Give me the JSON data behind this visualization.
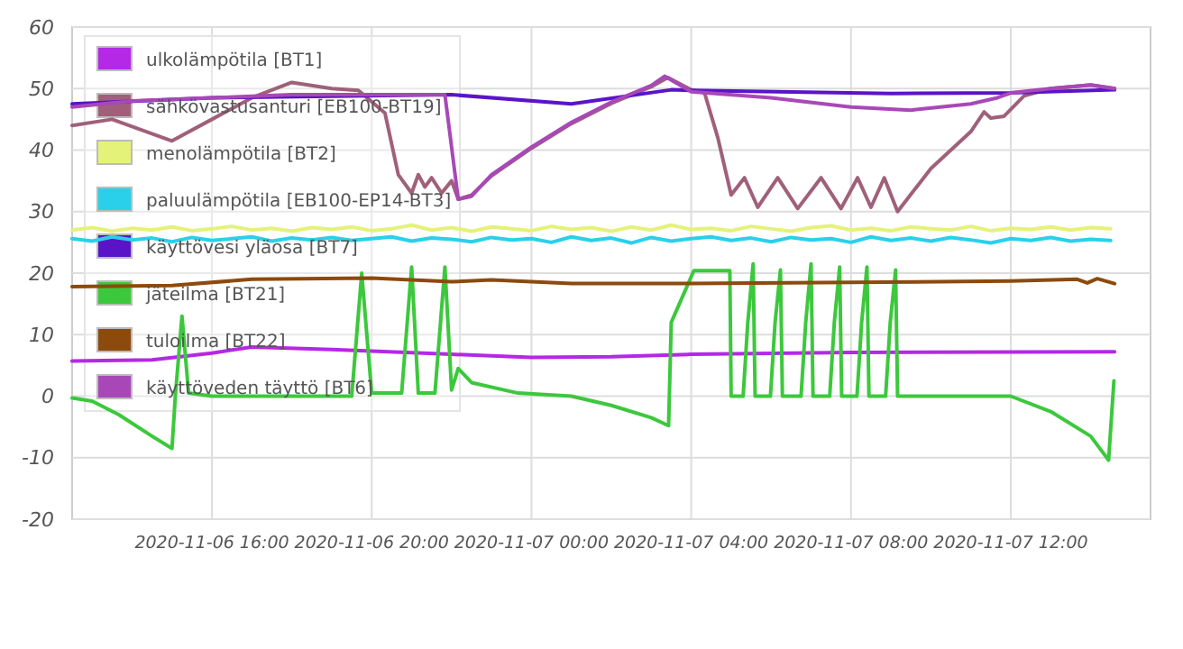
{
  "chart_data": {
    "type": "line",
    "grid": true,
    "legend": "top left",
    "marker": "none",
    "line_style": "solid",
    "xlim": [
      "2020-11-06T12:30",
      "2020-11-07T15:30"
    ],
    "xticks": [
      {
        "value": "2020-11-06T16:00",
        "label": "2020-11-06 16:00"
      },
      {
        "value": "2020-11-06T20:00",
        "label": "2020-11-06 20:00"
      },
      {
        "value": "2020-11-07T00:00",
        "label": "2020-11-07 00:00"
      },
      {
        "value": "2020-11-07T04:00",
        "label": "2020-11-07 04:00"
      },
      {
        "value": "2020-11-07T08:00",
        "label": "2020-11-07 08:00"
      },
      {
        "value": "2020-11-07T12:00",
        "label": "2020-11-07 12:00"
      }
    ],
    "ylim": [
      -20,
      60
    ],
    "yticks": [
      -20,
      -10,
      0,
      10,
      20,
      30,
      40,
      50,
      60
    ],
    "x": [
      "2020-11-06T12:30",
      "2020-11-06T13:00",
      "2020-11-06T13:30",
      "2020-11-06T14:00",
      "2020-11-06T14:30",
      "2020-11-06T15:00",
      "2020-11-06T15:30",
      "2020-11-06T16:00",
      "2020-11-06T16:30",
      "2020-11-06T17:00",
      "2020-11-06T17:30",
      "2020-11-06T18:00",
      "2020-11-06T18:30",
      "2020-11-06T19:00",
      "2020-11-06T19:30",
      "2020-11-06T20:00",
      "2020-11-06T20:30",
      "2020-11-06T21:00",
      "2020-11-06T21:30",
      "2020-11-06T22:00",
      "2020-11-06T22:30",
      "2020-11-06T23:00",
      "2020-11-06T23:30",
      "2020-11-07T00:00",
      "2020-11-07T00:30",
      "2020-11-07T01:00",
      "2020-11-07T01:30",
      "2020-11-07T02:00",
      "2020-11-07T02:30",
      "2020-11-07T03:00",
      "2020-11-07T03:30",
      "2020-11-07T04:00",
      "2020-11-07T04:30",
      "2020-11-07T05:00",
      "2020-11-07T05:30",
      "2020-11-07T06:00",
      "2020-11-07T06:30",
      "2020-11-07T07:00",
      "2020-11-07T07:30",
      "2020-11-07T08:00",
      "2020-11-07T08:30",
      "2020-11-07T09:00",
      "2020-11-07T09:30",
      "2020-11-07T10:00",
      "2020-11-07T10:30",
      "2020-11-07T11:00",
      "2020-11-07T11:30",
      "2020-11-07T12:00",
      "2020-11-07T12:30",
      "2020-11-07T13:00",
      "2020-11-07T13:30",
      "2020-11-07T14:00",
      "2020-11-07T14:30"
    ],
    "series": [
      {
        "name": "ulkolämpötila [BT1]",
        "color": "#b428e6",
        "x": [
          "2020-11-06T12:30",
          "2020-11-06T14:30",
          "2020-11-06T16:00",
          "2020-11-06T17:00",
          "2020-11-06T19:00",
          "2020-11-06T22:00",
          "2020-11-07T00:00",
          "2020-11-07T02:00",
          "2020-11-07T04:00",
          "2020-11-07T08:00",
          "2020-11-07T14:36"
        ],
        "values": [
          5.7,
          5.9,
          7,
          8,
          7.6,
          6.8,
          6.3,
          6.4,
          6.8,
          7.1,
          7.2
        ]
      },
      {
        "name": "sähkövastusanturi [EB100-BT19]",
        "color": "#a0607a",
        "x": [
          "2020-11-06T12:30",
          "2020-11-06T13:30",
          "2020-11-06T15:00",
          "2020-11-06T16:00",
          "2020-11-06T17:00",
          "2020-11-06T18:00",
          "2020-11-06T19:00",
          "2020-11-06T19:40",
          "2020-11-06T20:20",
          "2020-11-06T20:40",
          "2020-11-06T21:00",
          "2020-11-06T21:10",
          "2020-11-06T21:20",
          "2020-11-06T21:30",
          "2020-11-06T21:45",
          "2020-11-06T22:00",
          "2020-11-06T22:10",
          "2020-11-06T22:30",
          "2020-11-06T23:00",
          "2020-11-07T00:00",
          "2020-11-07T01:00",
          "2020-11-07T02:00",
          "2020-11-07T03:00",
          "2020-11-07T03:25",
          "2020-11-07T04:00",
          "2020-11-07T04:20",
          "2020-11-07T04:40",
          "2020-11-07T05:00",
          "2020-11-07T05:20",
          "2020-11-07T05:40",
          "2020-11-07T06:10",
          "2020-11-07T06:40",
          "2020-11-07T07:15",
          "2020-11-07T07:45",
          "2020-11-07T08:10",
          "2020-11-07T08:30",
          "2020-11-07T08:50",
          "2020-11-07T09:10",
          "2020-11-07T10:00",
          "2020-11-07T11:00",
          "2020-11-07T11:20",
          "2020-11-07T11:30",
          "2020-11-07T11:50",
          "2020-11-07T12:20",
          "2020-11-07T13:00",
          "2020-11-07T14:00",
          "2020-11-07T14:36"
        ],
        "values": [
          44,
          45,
          41.5,
          45,
          48.5,
          51,
          50,
          49.7,
          46,
          36,
          33,
          36,
          34,
          35.5,
          33,
          35,
          32,
          32.7,
          35.8,
          40.3,
          44.3,
          47.6,
          50.3,
          51.8,
          49.8,
          49.3,
          42,
          32.7,
          35.5,
          30.7,
          35.5,
          30.5,
          35.5,
          30.5,
          35.5,
          30.7,
          35.5,
          30,
          37,
          43,
          46.2,
          45.2,
          45.5,
          48.8,
          50,
          50.6,
          50
        ]
      },
      {
        "name": "menolämpötila [BT2]",
        "color": "#e4f27a",
        "values": [
          27,
          27.4,
          26.8,
          27.3,
          27,
          27.5,
          26.9,
          27.2,
          27.6,
          27,
          27.3,
          26.8,
          27.4,
          27.1,
          27.5,
          26.9,
          27.2,
          27.8,
          27,
          27.4,
          26.8,
          27.5,
          27.2,
          26.9,
          27.6,
          27.1,
          27.4,
          26.8,
          27.5,
          27,
          27.8,
          27.1,
          27.3,
          26.9,
          27.6,
          27.2,
          26.8,
          27.4,
          27.7,
          27,
          27.3,
          26.9,
          27.5,
          27.2,
          27,
          27.6,
          26.9,
          27.3,
          27.1,
          27.5,
          27,
          27.4,
          27.2
        ]
      },
      {
        "name": "paluulämpötila [EB100-EP14-BT3]",
        "color": "#2ad0ea",
        "values": [
          25.6,
          25.2,
          25.9,
          25.4,
          25.7,
          25.1,
          25.8,
          25.3,
          25.6,
          25.9,
          25.2,
          25.7,
          25.4,
          25.8,
          25.3,
          25.6,
          25.9,
          25.2,
          25.7,
          25.5,
          25.1,
          25.8,
          25.4,
          25.6,
          25,
          25.9,
          25.3,
          25.7,
          24.9,
          25.8,
          25.2,
          25.6,
          25.9,
          25.3,
          25.7,
          25.1,
          25.8,
          25.4,
          25.6,
          25,
          25.9,
          25.3,
          25.7,
          25.2,
          25.8,
          25.4,
          24.9,
          25.6,
          25.3,
          25.8,
          25.2,
          25.5,
          25.3
        ]
      },
      {
        "name": "käyttövesi yläosa [BT7]",
        "color": "#5a14c8",
        "x": [
          "2020-11-06T12:30",
          "2020-11-06T16:00",
          "2020-11-06T22:00",
          "2020-11-07T01:00",
          "2020-11-07T03:30",
          "2020-11-07T04:00",
          "2020-11-07T09:00",
          "2020-11-07T12:00",
          "2020-11-07T14:36"
        ],
        "values": [
          47.5,
          48.5,
          49,
          47.5,
          49.8,
          49.7,
          49.2,
          49.3,
          49.8
        ]
      },
      {
        "name": "jäteilma [BT21]",
        "color": "#3cc83c",
        "x": [
          "2020-11-06T12:30",
          "2020-11-06T13:00",
          "2020-11-06T13:40",
          "2020-11-06T14:30",
          "2020-11-06T15:00",
          "2020-11-06T15:05",
          "2020-11-06T15:15",
          "2020-11-06T15:25",
          "2020-11-06T16:00",
          "2020-11-06T19:30",
          "2020-11-06T19:45",
          "2020-11-06T20:00",
          "2020-11-06T20:45",
          "2020-11-06T21:00",
          "2020-11-06T21:10",
          "2020-11-06T21:35",
          "2020-11-06T21:50",
          "2020-11-06T22:00",
          "2020-11-06T22:10",
          "2020-11-06T22:30",
          "2020-11-06T23:40",
          "2020-11-07T01:00",
          "2020-11-07T02:00",
          "2020-11-07T03:00",
          "2020-11-07T03:26",
          "2020-11-07T03:30",
          "2020-11-07T04:04",
          "2020-11-07T04:58",
          "2020-11-07T05:00",
          "2020-11-07T05:18",
          "2020-11-07T05:25",
          "2020-11-07T05:33",
          "2020-11-07T05:36",
          "2020-11-07T05:59",
          "2020-11-07T06:06",
          "2020-11-07T06:14",
          "2020-11-07T06:17",
          "2020-11-07T06:45",
          "2020-11-07T06:52",
          "2020-11-07T07:00",
          "2020-11-07T07:03",
          "2020-11-07T07:28",
          "2020-11-07T07:35",
          "2020-11-07T07:43",
          "2020-11-07T07:46",
          "2020-11-07T08:09",
          "2020-11-07T08:16",
          "2020-11-07T08:24",
          "2020-11-07T08:27",
          "2020-11-07T08:52",
          "2020-11-07T08:59",
          "2020-11-07T09:07",
          "2020-11-07T09:10",
          "2020-11-07T12:00",
          "2020-11-07T13:00",
          "2020-11-07T14:00",
          "2020-11-07T14:27",
          "2020-11-07T14:35"
        ],
        "values": [
          -0.3,
          -0.8,
          -3,
          -6.5,
          -8.5,
          0,
          13,
          0.5,
          0,
          0,
          20,
          0.5,
          0.5,
          21,
          0.5,
          0.5,
          21,
          1,
          4.5,
          2.2,
          0.5,
          0,
          -1.5,
          -3.5,
          -4.8,
          12,
          20.4,
          20.4,
          0,
          0,
          12,
          21.5,
          0,
          0,
          12,
          20.5,
          0,
          0,
          12,
          21.5,
          0,
          0,
          12,
          21,
          0,
          0,
          12,
          21,
          0,
          0,
          12,
          20.5,
          0,
          0,
          -2.5,
          -6.5,
          -10.4,
          2.5
        ]
      },
      {
        "name": "tuloilma [BT22]",
        "color": "#8c4a0c",
        "x": [
          "2020-11-06T12:30",
          "2020-11-06T15:00",
          "2020-11-06T17:00",
          "2020-11-06T20:00",
          "2020-11-06T22:00",
          "2020-11-06T23:00",
          "2020-11-07T01:00",
          "2020-11-07T04:00",
          "2020-11-07T08:00",
          "2020-11-07T12:00",
          "2020-11-07T13:40",
          "2020-11-07T13:55",
          "2020-11-07T14:10",
          "2020-11-07T14:36"
        ],
        "values": [
          17.8,
          18,
          19,
          19.2,
          18.6,
          18.9,
          18.3,
          18.3,
          18.5,
          18.7,
          19,
          18.4,
          19.1,
          18.3
        ]
      },
      {
        "name": "käyttöveden täyttö [BT6]",
        "color": "#a848b8",
        "x": [
          "2020-11-06T12:30",
          "2020-11-06T14:00",
          "2020-11-06T16:00",
          "2020-11-06T18:00",
          "2020-11-06T20:00",
          "2020-11-06T21:50",
          "2020-11-06T22:10",
          "2020-11-06T22:30",
          "2020-11-06T23:00",
          "2020-11-07T00:00",
          "2020-11-07T01:00",
          "2020-11-07T02:00",
          "2020-11-07T03:00",
          "2020-11-07T03:20",
          "2020-11-07T04:00",
          "2020-11-07T06:00",
          "2020-11-07T08:00",
          "2020-11-07T09:30",
          "2020-11-07T11:00",
          "2020-11-07T11:40",
          "2020-11-07T12:00",
          "2020-11-07T13:00",
          "2020-11-07T14:00",
          "2020-11-07T14:36"
        ],
        "values": [
          47,
          48,
          48.5,
          49,
          49,
          49,
          32,
          32.5,
          36,
          40.5,
          44.5,
          47.8,
          50.5,
          52,
          49.5,
          48.5,
          47,
          46.5,
          47.5,
          48.5,
          49.3,
          50,
          50.6,
          50
        ]
      }
    ]
  }
}
